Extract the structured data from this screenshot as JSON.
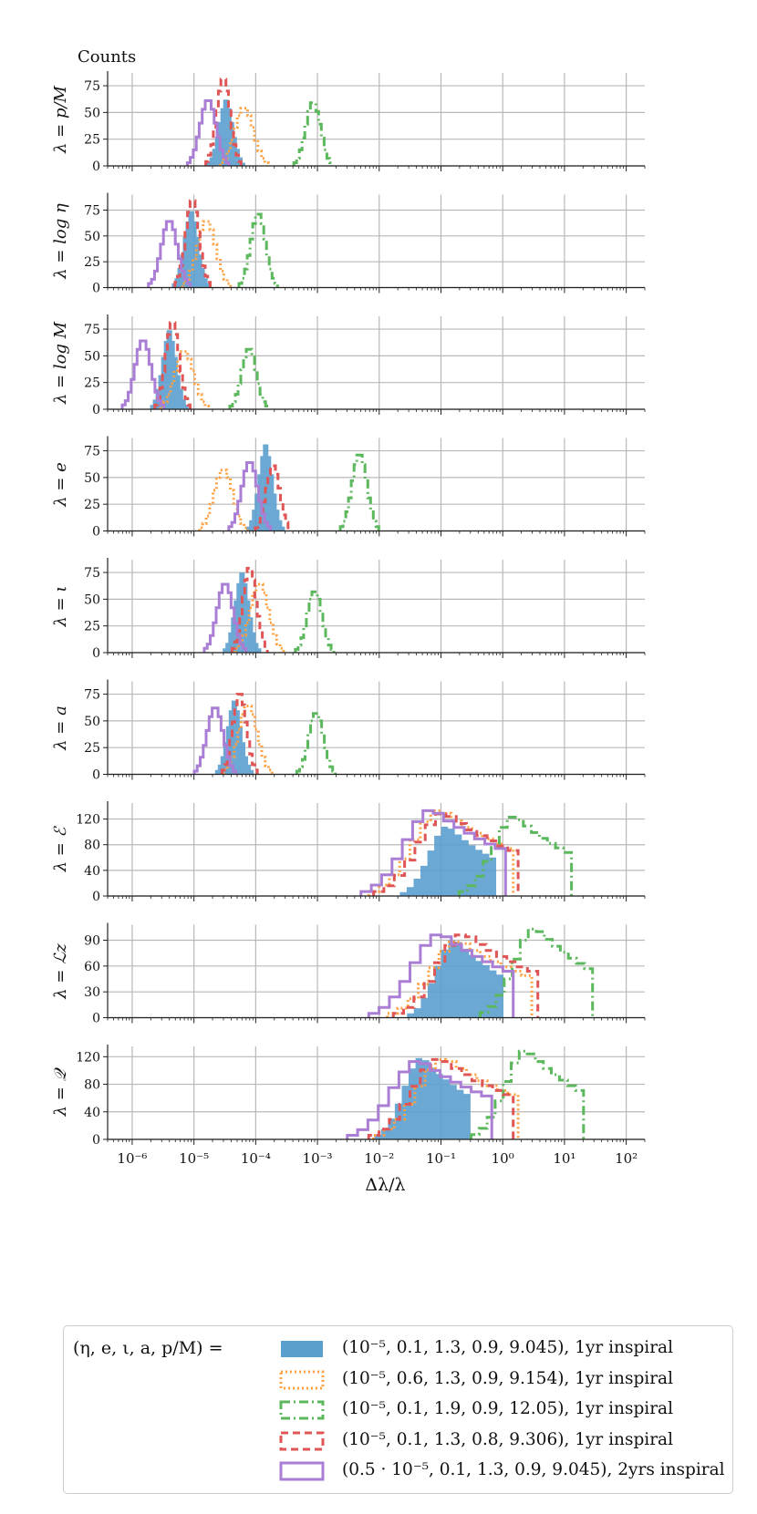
{
  "figure": {
    "counts_label": "Counts",
    "xlabel": "Δλ/λ",
    "legend_title": "(η, e, ι, a, p/M) ="
  },
  "chart_data": {
    "type": "histogram",
    "x_scale": "log",
    "xlim": [
      4e-07,
      200
    ],
    "x_ticks": [
      1e-06,
      1e-05,
      0.0001,
      0.001,
      0.01,
      0.1,
      1,
      10,
      100
    ],
    "x_tick_labels": [
      "10⁻⁶",
      "10⁻⁵",
      "10⁻⁴",
      "10⁻³",
      "10⁻²",
      "10⁻¹",
      "10⁰",
      "10¹",
      "10²"
    ],
    "grid": true,
    "legend_position": "bottom",
    "series": [
      {
        "name": "(10⁻⁵, 0.1, 1.3, 0.9, 9.045), 1yr inspiral",
        "style": "filled",
        "color": "#5b9fcf"
      },
      {
        "name": "(10⁻⁵, 0.6, 1.3, 0.9, 9.154), 1yr inspiral",
        "style": "dotted",
        "color": "#ffa040"
      },
      {
        "name": "(10⁻⁵, 0.1, 1.9, 0.9, 12.05), 1yr inspiral",
        "style": "dashdot",
        "color": "#5cb85c"
      },
      {
        "name": "(10⁻⁵, 0.1, 1.3, 0.8, 9.306), 1yr inspiral",
        "style": "dashed",
        "color": "#e05555"
      },
      {
        "name": "(0.5 · 10⁻⁵, 0.1, 1.3, 0.9, 9.045), 2yrs inspiral",
        "style": "solid",
        "color": "#a97ed4"
      }
    ],
    "panels": [
      {
        "ylabel": "λ = p/M",
        "yticks": [
          0,
          25,
          50,
          75
        ],
        "ymax": 87,
        "centers": [
          3.3e-05,
          6.5e-05,
          0.00085,
          3e-05,
          1.7e-05
        ],
        "widths": [
          0.12,
          0.15,
          0.12,
          0.11,
          0.13
        ],
        "peaks": [
          63,
          55,
          60,
          82,
          62
        ]
      },
      {
        "ylabel": "λ = log η",
        "yticks": [
          0,
          25,
          50,
          75
        ],
        "ymax": 90,
        "centers": [
          9e-06,
          1.6e-05,
          0.00011,
          9.5e-06,
          4e-06
        ],
        "widths": [
          0.12,
          0.15,
          0.12,
          0.11,
          0.13
        ],
        "peaks": [
          75,
          65,
          72,
          85,
          65
        ]
      },
      {
        "ylabel": "λ = log M",
        "yticks": [
          0,
          25,
          50,
          75
        ],
        "ymax": 87,
        "centers": [
          4e-06,
          7e-06,
          7.8e-05,
          4.5e-06,
          1.5e-06
        ],
        "widths": [
          0.12,
          0.15,
          0.12,
          0.11,
          0.13
        ],
        "peaks": [
          75,
          55,
          57,
          82,
          65
        ]
      },
      {
        "ylabel": "λ = e",
        "yticks": [
          0,
          25,
          50,
          75
        ],
        "ymax": 87,
        "centers": [
          0.000145,
          3e-05,
          0.0048,
          0.00019,
          8e-05
        ],
        "widths": [
          0.12,
          0.15,
          0.12,
          0.11,
          0.13
        ],
        "peaks": [
          82,
          58,
          72,
          62,
          65
        ]
      },
      {
        "ylabel": "λ = ι",
        "yticks": [
          0,
          25,
          50,
          75
        ],
        "ymax": 87,
        "centers": [
          6e-05,
          0.000115,
          0.0009,
          8e-05,
          3.2e-05
        ],
        "widths": [
          0.12,
          0.15,
          0.12,
          0.11,
          0.13
        ],
        "peaks": [
          76,
          65,
          58,
          80,
          65
        ]
      },
      {
        "ylabel": "λ = a",
        "yticks": [
          0,
          25,
          50,
          75
        ],
        "ymax": 87,
        "centers": [
          4.5e-05,
          7.5e-05,
          0.00095,
          5.5e-05,
          2.2e-05
        ],
        "widths": [
          0.12,
          0.15,
          0.12,
          0.11,
          0.13
        ],
        "peaks": [
          70,
          65,
          58,
          76,
          63
        ]
      },
      {
        "ylabel": "λ = ℰ",
        "yticks": [
          0,
          40,
          80,
          120
        ],
        "ymax": 145,
        "centers": [
          0.13,
          0.1,
          1.6,
          0.12,
          0.075
        ],
        "widths": [
          0.3,
          0.45,
          0.35,
          0.45,
          0.45
        ],
        "peaks": [
          110,
          135,
          125,
          130,
          135
        ]
      },
      {
        "ylabel": "λ = ℒz",
        "yticks": [
          0,
          30,
          60,
          90
        ],
        "ymax": 108,
        "centers": [
          0.17,
          0.2,
          3.5,
          0.25,
          0.1
        ],
        "widths": [
          0.3,
          0.45,
          0.35,
          0.45,
          0.45
        ],
        "peaks": [
          92,
          90,
          105,
          98,
          98
        ]
      },
      {
        "ylabel": "λ = 𝒬",
        "yticks": [
          0,
          40,
          80,
          120
        ],
        "ymax": 135,
        "centers": [
          0.05,
          0.12,
          2.5,
          0.1,
          0.045
        ],
        "widths": [
          0.3,
          0.45,
          0.35,
          0.45,
          0.45
        ],
        "peaks": [
          120,
          118,
          130,
          118,
          115
        ]
      }
    ]
  }
}
